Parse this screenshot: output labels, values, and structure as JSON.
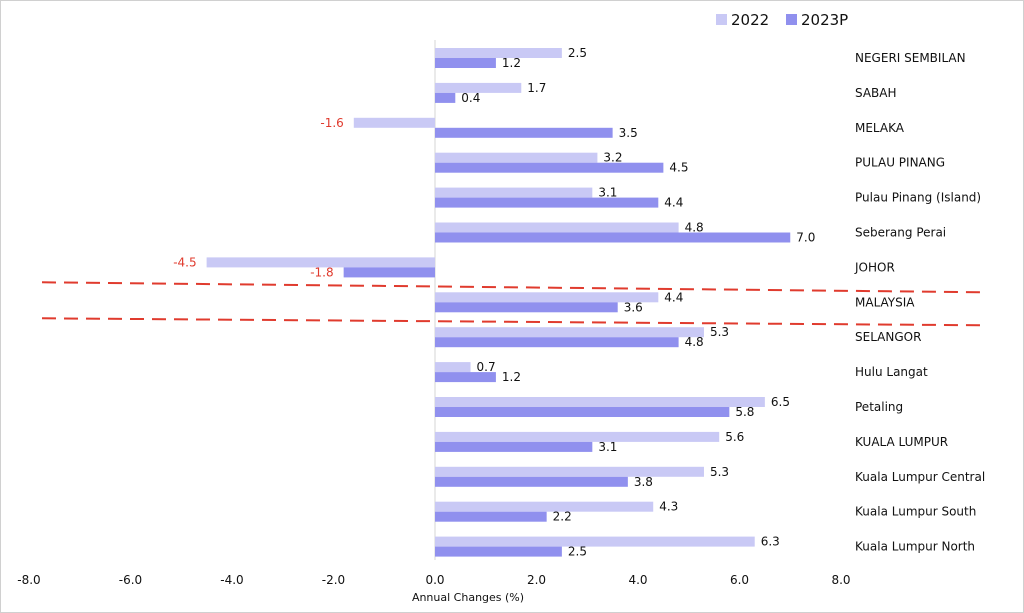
{
  "chart_data": {
    "type": "bar",
    "orientation": "horizontal",
    "title": "",
    "xlabel": "Annual Changes (%)",
    "ylabel": "",
    "xlim": [
      -8.0,
      8.0
    ],
    "xticks": [
      "-8.0",
      "-6.0",
      "-4.0",
      "-2.0",
      "0.0",
      "2.0",
      "4.0",
      "6.0",
      "8.0"
    ],
    "legend_position": "top-right",
    "categories": [
      "NEGERI SEMBILAN",
      "SABAH",
      "MELAKA",
      "PULAU PINANG",
      "Pulau Pinang (Island)",
      "Seberang Perai",
      "JOHOR",
      "MALAYSIA",
      "SELANGOR",
      "Hulu Langat",
      "Petaling",
      "KUALA LUMPUR",
      "Kuala Lumpur Central",
      "Kuala Lumpur South",
      "Kuala Lumpur North"
    ],
    "series": [
      {
        "name": "2022",
        "color": "#c9c9f5",
        "values": [
          2.5,
          1.7,
          -1.6,
          3.2,
          3.1,
          4.8,
          -4.5,
          4.4,
          5.3,
          0.7,
          6.5,
          5.6,
          5.3,
          4.3,
          6.3
        ],
        "labels": [
          "2.5",
          "1.7",
          "-1.6",
          "3.2",
          "3.1",
          "4.8",
          "-4.5",
          "4.4",
          "5.3",
          "0.7",
          "6.5",
          "5.6",
          "5.3",
          "4.3",
          "6.3"
        ]
      },
      {
        "name": "2023P",
        "color": "#9090ee",
        "values": [
          1.2,
          0.4,
          3.5,
          4.5,
          4.4,
          7.0,
          -1.8,
          3.6,
          4.8,
          1.2,
          5.8,
          3.1,
          3.8,
          2.2,
          2.5
        ],
        "labels": [
          "1.2",
          "0.4",
          "3.5",
          "4.5",
          "4.4",
          "7.0",
          "-1.8",
          "3.6",
          "4.8",
          "1.2",
          "5.8",
          "3.1",
          "3.8",
          "2.2",
          "2.5"
        ]
      }
    ],
    "negative_label_color": "#e03b2e",
    "highlight_category": "MALAYSIA",
    "highlight_color": "#e03b2e"
  }
}
